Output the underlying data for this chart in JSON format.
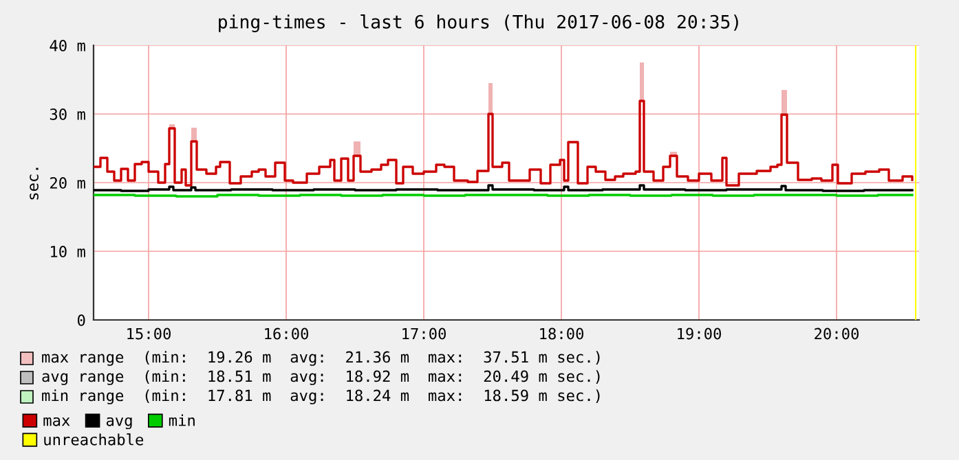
{
  "chart_data": {
    "type": "step",
    "title": "ping-times - last 6 hours (Thu 2017-06-08 20:35)",
    "ylabel": "sec.",
    "xlim": [
      14.6,
      20.6
    ],
    "xticks": [
      {
        "value": 15,
        "label": "15:00"
      },
      {
        "value": 16,
        "label": "16:00"
      },
      {
        "value": 17,
        "label": "17:00"
      },
      {
        "value": 18,
        "label": "18:00"
      },
      {
        "value": 19,
        "label": "19:00"
      },
      {
        "value": 20,
        "label": "20:00"
      }
    ],
    "ylim": [
      0,
      40
    ],
    "yticks": [
      {
        "value": 0,
        "label": "0"
      },
      {
        "value": 10,
        "label": "10 m"
      },
      {
        "value": 20,
        "label": "20 m"
      },
      {
        "value": 30,
        "label": "30 m"
      },
      {
        "value": 40,
        "label": "40 m"
      }
    ],
    "grid": true,
    "legend": "bottom",
    "series": [
      {
        "name": "max",
        "color": "#cc0000",
        "x": [
          14.6,
          14.65,
          14.7,
          14.75,
          14.8,
          14.85,
          14.9,
          14.95,
          15.0,
          15.07,
          15.12,
          15.15,
          15.19,
          15.24,
          15.27,
          15.31,
          15.35,
          15.42,
          15.49,
          15.52,
          15.59,
          15.67,
          15.75,
          15.8,
          15.85,
          15.92,
          15.99,
          16.05,
          16.15,
          16.24,
          16.32,
          16.35,
          16.4,
          16.45,
          16.49,
          16.54,
          16.62,
          16.69,
          16.74,
          16.8,
          16.85,
          16.92,
          17.0,
          17.09,
          17.15,
          17.22,
          17.32,
          17.39,
          17.47,
          17.5,
          17.57,
          17.62,
          17.77,
          17.85,
          17.92,
          17.99,
          18.02,
          18.05,
          18.12,
          18.19,
          18.25,
          18.32,
          18.39,
          18.45,
          18.54,
          18.57,
          18.6,
          18.67,
          18.74,
          18.79,
          18.84,
          18.92,
          19.0,
          19.09,
          19.17,
          19.2,
          19.29,
          19.42,
          19.52,
          19.57,
          19.6,
          19.64,
          19.72,
          19.82,
          19.89,
          19.97,
          20.01,
          20.11,
          20.21,
          20.31,
          20.38,
          20.48,
          20.55
        ],
        "values": [
          22.3,
          23.6,
          21.6,
          20.3,
          22.0,
          20.3,
          22.7,
          23.0,
          21.6,
          20.0,
          22.7,
          27.9,
          20.0,
          21.9,
          19.6,
          26.0,
          21.9,
          21.3,
          22.3,
          23.0,
          19.9,
          20.9,
          21.6,
          21.9,
          20.9,
          22.9,
          20.3,
          20.0,
          21.3,
          22.3,
          23.3,
          20.3,
          23.5,
          20.3,
          23.9,
          21.6,
          21.9,
          22.6,
          23.3,
          19.9,
          22.3,
          21.3,
          21.6,
          22.6,
          22.3,
          20.3,
          20.1,
          21.7,
          30.0,
          22.3,
          22.9,
          20.3,
          21.9,
          19.9,
          22.6,
          23.3,
          20.3,
          25.9,
          19.9,
          22.3,
          21.6,
          20.4,
          20.9,
          21.3,
          21.6,
          31.9,
          21.6,
          20.3,
          22.3,
          23.9,
          20.9,
          20.3,
          21.3,
          20.3,
          23.6,
          19.6,
          21.3,
          21.7,
          22.3,
          22.6,
          29.9,
          22.9,
          20.4,
          20.6,
          20.3,
          22.6,
          19.9,
          21.3,
          21.6,
          21.9,
          20.3,
          20.9,
          20.4
        ],
        "lower": [
          22.3,
          23.6,
          21.6,
          20.3,
          22.0,
          20.3,
          22.7,
          23.0,
          21.6,
          20.0,
          22.7,
          27.9,
          20.0,
          21.9,
          19.6,
          26.0,
          21.9,
          21.3,
          22.3,
          23.0,
          19.9,
          20.9,
          21.6,
          21.9,
          20.9,
          22.9,
          20.3,
          20.0,
          21.3,
          22.3,
          23.3,
          20.3,
          23.5,
          20.3,
          23.9,
          21.6,
          21.9,
          22.6,
          23.3,
          19.9,
          22.3,
          21.3,
          21.6,
          22.6,
          22.3,
          20.3,
          20.1,
          21.7,
          30.0,
          22.3,
          22.9,
          20.3,
          21.9,
          19.9,
          22.6,
          23.3,
          20.3,
          25.9,
          19.9,
          22.3,
          21.6,
          20.4,
          20.9,
          21.3,
          21.6,
          31.9,
          21.6,
          20.3,
          22.3,
          23.9,
          20.9,
          20.3,
          21.3,
          20.3,
          23.6,
          19.6,
          21.3,
          21.7,
          22.3,
          22.6,
          29.9,
          22.9,
          20.4,
          20.6,
          20.3,
          22.6,
          19.9,
          21.3,
          21.6,
          21.9,
          20.3,
          20.9,
          20.4
        ],
        "upper": [
          22.3,
          23.6,
          21.6,
          20.3,
          22.0,
          20.3,
          22.7,
          23.0,
          21.6,
          20.0,
          22.7,
          28.5,
          20.0,
          21.9,
          19.6,
          28.0,
          21.9,
          21.3,
          22.3,
          23.0,
          19.9,
          20.9,
          21.6,
          21.9,
          20.9,
          22.9,
          20.3,
          20.0,
          21.3,
          22.3,
          23.3,
          20.3,
          23.5,
          20.3,
          26.0,
          21.6,
          21.9,
          22.6,
          23.3,
          19.9,
          22.3,
          21.3,
          21.6,
          22.6,
          22.3,
          20.3,
          20.1,
          21.7,
          34.5,
          22.3,
          22.9,
          20.3,
          21.9,
          19.9,
          22.6,
          23.3,
          20.3,
          25.9,
          19.9,
          22.3,
          21.6,
          20.4,
          20.9,
          21.3,
          21.6,
          37.5,
          21.6,
          20.3,
          22.3,
          24.5,
          20.9,
          20.3,
          21.3,
          20.3,
          23.6,
          19.6,
          21.3,
          21.7,
          22.3,
          22.6,
          33.5,
          22.9,
          20.4,
          20.6,
          20.3,
          22.6,
          19.9,
          21.3,
          21.6,
          21.9,
          20.3,
          20.9,
          20.4
        ]
      },
      {
        "name": "avg",
        "color": "#000000",
        "x": [
          14.6,
          14.8,
          15.0,
          15.15,
          15.18,
          15.31,
          15.34,
          15.6,
          15.9,
          16.2,
          16.5,
          16.8,
          17.1,
          17.47,
          17.5,
          17.8,
          18.02,
          18.05,
          18.3,
          18.57,
          18.6,
          18.9,
          19.2,
          19.6,
          19.63,
          19.9,
          20.2,
          20.55
        ],
        "values": [
          18.9,
          18.8,
          19.0,
          19.4,
          18.9,
          19.3,
          18.9,
          19.0,
          18.9,
          19.0,
          18.9,
          19.0,
          18.9,
          19.6,
          19.0,
          18.9,
          19.4,
          18.9,
          19.0,
          19.6,
          19.0,
          18.9,
          19.0,
          19.5,
          18.9,
          18.8,
          18.9,
          18.9
        ]
      },
      {
        "name": "min",
        "color": "#00cc00",
        "x": [
          14.6,
          14.9,
          15.2,
          15.5,
          15.8,
          16.1,
          16.4,
          16.7,
          17.0,
          17.3,
          17.6,
          17.9,
          18.2,
          18.5,
          18.8,
          19.1,
          19.4,
          19.7,
          20.0,
          20.3,
          20.55
        ],
        "values": [
          18.2,
          18.1,
          18.0,
          18.2,
          18.1,
          18.2,
          18.1,
          18.2,
          18.1,
          18.2,
          18.2,
          18.1,
          18.2,
          18.1,
          18.2,
          18.1,
          18.2,
          18.2,
          18.1,
          18.2,
          18.2
        ]
      }
    ],
    "bands": [
      {
        "axis": "x",
        "from": 20.57,
        "to": 20.58,
        "label": "unreachable",
        "color": "#ffff00"
      }
    ],
    "annotations": [
      "max range  (min:  19.26 m  avg:  21.36 m  max:  37.51 m sec.)",
      "avg range  (min:  18.51 m  avg:  18.92 m  max:  20.49 m sec.)",
      "min range  (min:  17.81 m  avg:  18.24 m  max:  18.59 m sec.)"
    ]
  }
}
